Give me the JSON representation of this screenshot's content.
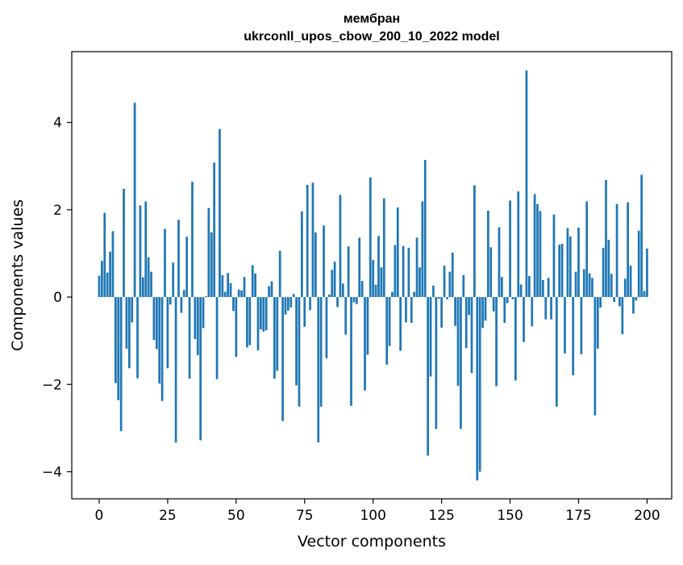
{
  "chart_data": {
    "type": "bar",
    "title_line1": "мембран",
    "title_line2": "ukrconll_upos_cbow_200_10_2022 model",
    "xlabel": "Vector components",
    "ylabel": "Components values",
    "xlim": [
      -10,
      209
    ],
    "ylim": [
      -4.62,
      5.62
    ],
    "xticks": [
      0,
      25,
      50,
      75,
      100,
      125,
      150,
      175,
      200
    ],
    "yticks": [
      -4,
      -2,
      0,
      2,
      4
    ],
    "ytick_labels": [
      "−4",
      "−2",
      "0",
      "2",
      "4"
    ],
    "color": "#1f77b4",
    "values": [
      0.49,
      0.83,
      1.93,
      0.56,
      1.04,
      1.51,
      -1.97,
      -2.36,
      -3.07,
      2.48,
      -1.18,
      -1.63,
      -0.58,
      4.45,
      -1.86,
      2.1,
      0.45,
      2.19,
      0.91,
      0.58,
      -0.98,
      -1.19,
      -1.98,
      -2.38,
      1.56,
      -1.63,
      -0.17,
      0.79,
      -3.33,
      1.77,
      -0.36,
      0.16,
      1.38,
      -1.87,
      2.64,
      -0.96,
      -1.33,
      -3.28,
      -0.71,
      0.02,
      2.04,
      1.48,
      3.08,
      -1.88,
      3.85,
      0.5,
      0.12,
      0.55,
      0.32,
      -0.32,
      -1.37,
      0.17,
      0.15,
      0.46,
      -1.15,
      -1.1,
      0.73,
      0.54,
      -1.22,
      -0.74,
      -0.79,
      -0.76,
      0.25,
      0.36,
      -1.87,
      -1.69,
      1.06,
      -2.84,
      -0.4,
      -0.31,
      -0.24,
      0.07,
      -2.02,
      -2.51,
      1.96,
      -0.68,
      2.57,
      -0.3,
      2.62,
      1.48,
      -3.33,
      -2.51,
      1.64,
      -1.4,
      0.06,
      0.62,
      0.81,
      -0.23,
      2.34,
      0.31,
      -0.86,
      1.16,
      -2.49,
      -0.12,
      -0.16,
      1.36,
      0.37,
      -2.14,
      -1.32,
      2.74,
      0.85,
      0.28,
      1.4,
      0.68,
      2.26,
      -1.55,
      -1.12,
      0.12,
      1.19,
      2.05,
      -1.23,
      1.17,
      -0.58,
      1.13,
      -0.59,
      0.12,
      1.36,
      0.68,
      2.19,
      3.14,
      -3.63,
      -1.82,
      0.26,
      -3.02,
      -0.04,
      -0.7,
      0.72,
      -0.05,
      0.58,
      1.02,
      -0.66,
      -2.03,
      -3.02,
      0.5,
      -1.17,
      -0.41,
      -1.74,
      2.56,
      -4.2,
      -4.0,
      -0.71,
      -0.54,
      1.98,
      1.14,
      -0.33,
      -2.04,
      1.6,
      0.46,
      -0.59,
      -0.14,
      2.21,
      -0.05,
      -1.91,
      2.42,
      0.29,
      -1.03,
      5.19,
      0.48,
      -0.67,
      2.36,
      2.13,
      1.97,
      0.39,
      -0.51,
      0.44,
      -0.51,
      1.89,
      -2.51,
      1.2,
      1.22,
      -1.29,
      1.58,
      1.39,
      -1.79,
      0.58,
      1.59,
      -1.31,
      0.64,
      2.19,
      0.54,
      0.44,
      -2.71,
      -1.18,
      -0.24,
      1.13,
      2.68,
      1.31,
      0.53,
      -0.11,
      2.13,
      -0.21,
      -0.85,
      0.42,
      2.17,
      0.72,
      -0.38,
      -0.08,
      1.52,
      2.8,
      0.14,
      1.11
    ]
  }
}
